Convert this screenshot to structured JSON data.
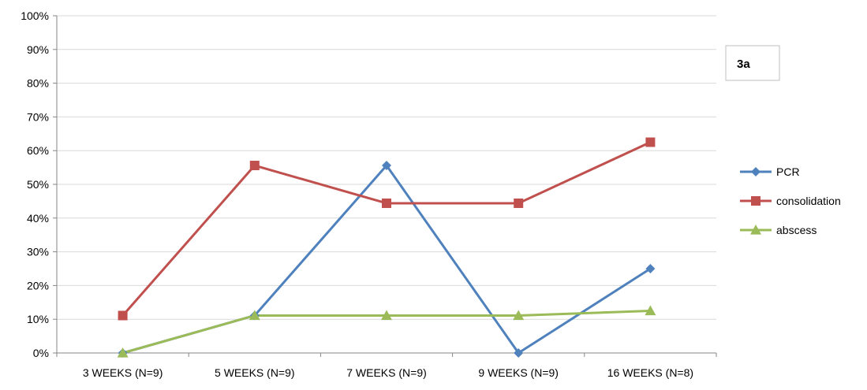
{
  "chart_data": {
    "type": "line",
    "categories": [
      "3 WEEKS (N=9)",
      "5 WEEKS (N=9)",
      "7 WEEKS (N=9)",
      "9 WEEKS (N=9)",
      "16 WEEKS (N=8)"
    ],
    "series": [
      {
        "name": "PCR",
        "values": [
          0,
          11.1,
          55.6,
          0,
          25
        ],
        "color": "#4F81BD",
        "marker": "diamond"
      },
      {
        "name": "consolidation",
        "values": [
          11.1,
          55.6,
          44.4,
          44.4,
          62.5
        ],
        "color": "#C0504D",
        "marker": "square"
      },
      {
        "name": "abscess",
        "values": [
          0,
          11.1,
          11.1,
          11.1,
          12.5
        ],
        "color": "#9BBB59",
        "marker": "triangle"
      }
    ],
    "ylim": [
      0,
      100
    ],
    "yticks": [
      0,
      10,
      20,
      30,
      40,
      50,
      60,
      70,
      80,
      90,
      100
    ],
    "ytick_labels": [
      "0%",
      "10%",
      "20%",
      "30%",
      "40%",
      "50%",
      "60%",
      "70%",
      "80%",
      "90%",
      "100%"
    ],
    "grid": true,
    "legend_position": "right",
    "annotation": "3a"
  }
}
